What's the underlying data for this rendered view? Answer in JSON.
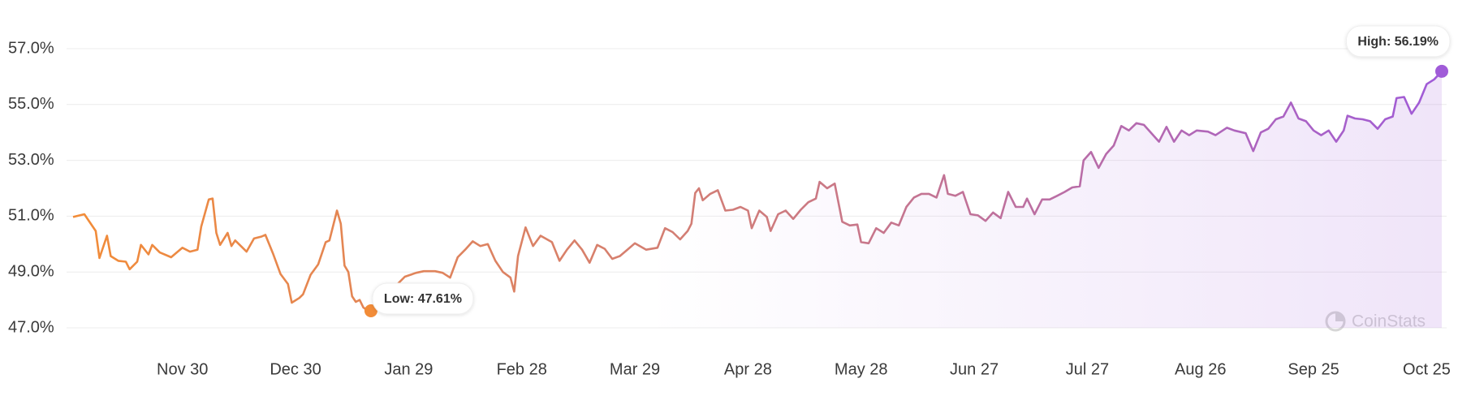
{
  "chart_data": {
    "type": "line",
    "x": [
      0,
      3,
      6,
      7,
      9,
      10,
      12,
      14,
      15,
      17,
      18,
      20,
      21,
      23,
      26,
      29,
      31,
      33,
      34,
      36,
      37,
      38,
      39,
      41,
      42,
      43,
      46,
      48,
      50,
      51,
      53,
      55,
      57,
      58,
      60,
      61,
      63,
      65,
      67,
      68,
      70,
      71,
      72,
      73,
      74,
      75,
      76,
      77,
      78,
      79,
      88,
      91,
      93,
      96,
      98,
      100,
      102,
      104,
      106,
      108,
      110,
      112,
      114,
      116,
      117,
      118,
      120,
      122,
      124,
      127,
      129,
      131,
      133,
      135,
      137,
      139,
      141,
      143,
      145,
      147,
      149,
      152,
      155,
      157,
      159,
      161,
      163,
      164,
      165,
      166,
      167,
      169,
      171,
      173,
      175,
      177,
      179,
      180,
      182,
      184,
      185,
      187,
      189,
      191,
      193,
      195,
      197,
      198,
      200,
      202,
      204,
      206,
      208,
      209,
      211,
      213,
      215,
      217,
      219,
      221,
      223,
      225,
      227,
      229,
      231,
      232,
      234,
      236,
      238,
      240,
      242,
      244,
      246,
      248,
      250,
      252,
      253,
      255,
      257,
      259,
      261,
      263,
      265,
      267,
      268,
      270,
      272,
      274,
      276,
      278,
      280,
      282,
      284,
      286,
      288,
      290,
      292,
      294,
      296,
      298,
      301,
      303,
      306,
      308,
      311,
      313,
      315,
      317,
      319,
      321,
      323,
      325,
      327,
      329,
      331,
      333,
      335,
      337,
      338,
      340,
      342,
      344,
      346,
      348,
      350,
      351,
      353,
      355,
      357,
      359,
      361,
      363
    ],
    "series": [
      {
        "values": [
          50.97,
          51.07,
          50.47,
          49.5,
          50.3,
          49.57,
          49.4,
          49.37,
          49.1,
          49.37,
          49.97,
          49.63,
          49.97,
          49.7,
          49.53,
          49.87,
          49.73,
          49.8,
          50.63,
          51.6,
          51.63,
          50.4,
          49.97,
          50.4,
          49.93,
          50.13,
          49.73,
          50.2,
          50.27,
          50.33,
          49.67,
          48.93,
          48.57,
          47.9,
          48.07,
          48.2,
          48.9,
          49.27,
          50.07,
          50.13,
          51.2,
          50.73,
          49.23,
          49.0,
          48.13,
          47.93,
          48.0,
          47.73,
          47.63,
          47.61,
          48.83,
          48.97,
          49.03,
          49.03,
          48.97,
          48.8,
          49.53,
          49.8,
          50.1,
          49.93,
          50.0,
          49.4,
          49.0,
          48.8,
          48.3,
          49.57,
          50.6,
          49.93,
          50.3,
          50.07,
          49.4,
          49.8,
          50.13,
          49.8,
          49.33,
          49.97,
          49.83,
          49.47,
          49.57,
          49.8,
          50.03,
          49.8,
          49.87,
          50.57,
          50.43,
          50.17,
          50.47,
          50.73,
          51.83,
          52.0,
          51.57,
          51.8,
          51.93,
          51.2,
          51.23,
          51.33,
          51.2,
          50.57,
          51.2,
          50.97,
          50.47,
          51.07,
          51.2,
          50.9,
          51.23,
          51.5,
          51.63,
          52.23,
          52.0,
          52.17,
          50.8,
          50.67,
          50.7,
          50.07,
          50.03,
          50.57,
          50.4,
          50.77,
          50.67,
          51.33,
          51.67,
          51.8,
          51.8,
          51.67,
          52.47,
          51.8,
          51.73,
          51.87,
          51.07,
          51.03,
          50.83,
          51.13,
          50.93,
          51.87,
          51.33,
          51.33,
          51.63,
          51.07,
          51.6,
          51.6,
          51.73,
          51.87,
          52.03,
          52.07,
          53.0,
          53.3,
          52.73,
          53.23,
          53.53,
          54.23,
          54.07,
          54.33,
          54.27,
          53.97,
          53.67,
          54.2,
          53.67,
          54.07,
          53.9,
          54.07,
          54.03,
          53.9,
          54.17,
          54.07,
          53.97,
          53.33,
          54.0,
          54.13,
          54.47,
          54.57,
          55.07,
          54.5,
          54.4,
          54.07,
          53.9,
          54.07,
          53.67,
          54.07,
          54.6,
          54.5,
          54.47,
          54.4,
          54.13,
          54.47,
          54.57,
          55.23,
          55.27,
          54.67,
          55.07,
          55.73,
          55.9,
          56.19
        ]
      }
    ],
    "line_gradient": [
      "#f28c38",
      "#cf7c7c",
      "#a05bd8"
    ],
    "area_color": "#a05bd8",
    "xlim": [
      0,
      363
    ],
    "xticks": [
      {
        "value": 29,
        "label": "Nov 30"
      },
      {
        "value": 59,
        "label": "Dec 30"
      },
      {
        "value": 89,
        "label": "Jan 29"
      },
      {
        "value": 119,
        "label": "Feb 28"
      },
      {
        "value": 149,
        "label": "Mar 29"
      },
      {
        "value": 179,
        "label": "Apr 28"
      },
      {
        "value": 209,
        "label": "May 28"
      },
      {
        "value": 239,
        "label": "Jun 27"
      },
      {
        "value": 269,
        "label": "Jul 27"
      },
      {
        "value": 299,
        "label": "Aug 26"
      },
      {
        "value": 329,
        "label": "Sep 25"
      },
      {
        "value": 359,
        "label": "Oct 25"
      }
    ],
    "ylim": [
      47,
      57
    ],
    "yticks": [
      {
        "value": 47,
        "label": "47.0%"
      },
      {
        "value": 49,
        "label": "49.0%"
      },
      {
        "value": 51,
        "label": "51.0%"
      },
      {
        "value": 53,
        "label": "53.0%"
      },
      {
        "value": 55,
        "label": "55.0%"
      },
      {
        "value": 57,
        "label": "57.0%"
      }
    ],
    "grid": true,
    "annotations": [
      {
        "text": "Low: 47.61%",
        "x": 79,
        "value": 47.61,
        "color": "#f28c38"
      },
      {
        "text": "High: 56.19%",
        "x": 363,
        "value": 56.19,
        "color": "#a05bd8"
      }
    ],
    "watermark": "CoinStats"
  }
}
